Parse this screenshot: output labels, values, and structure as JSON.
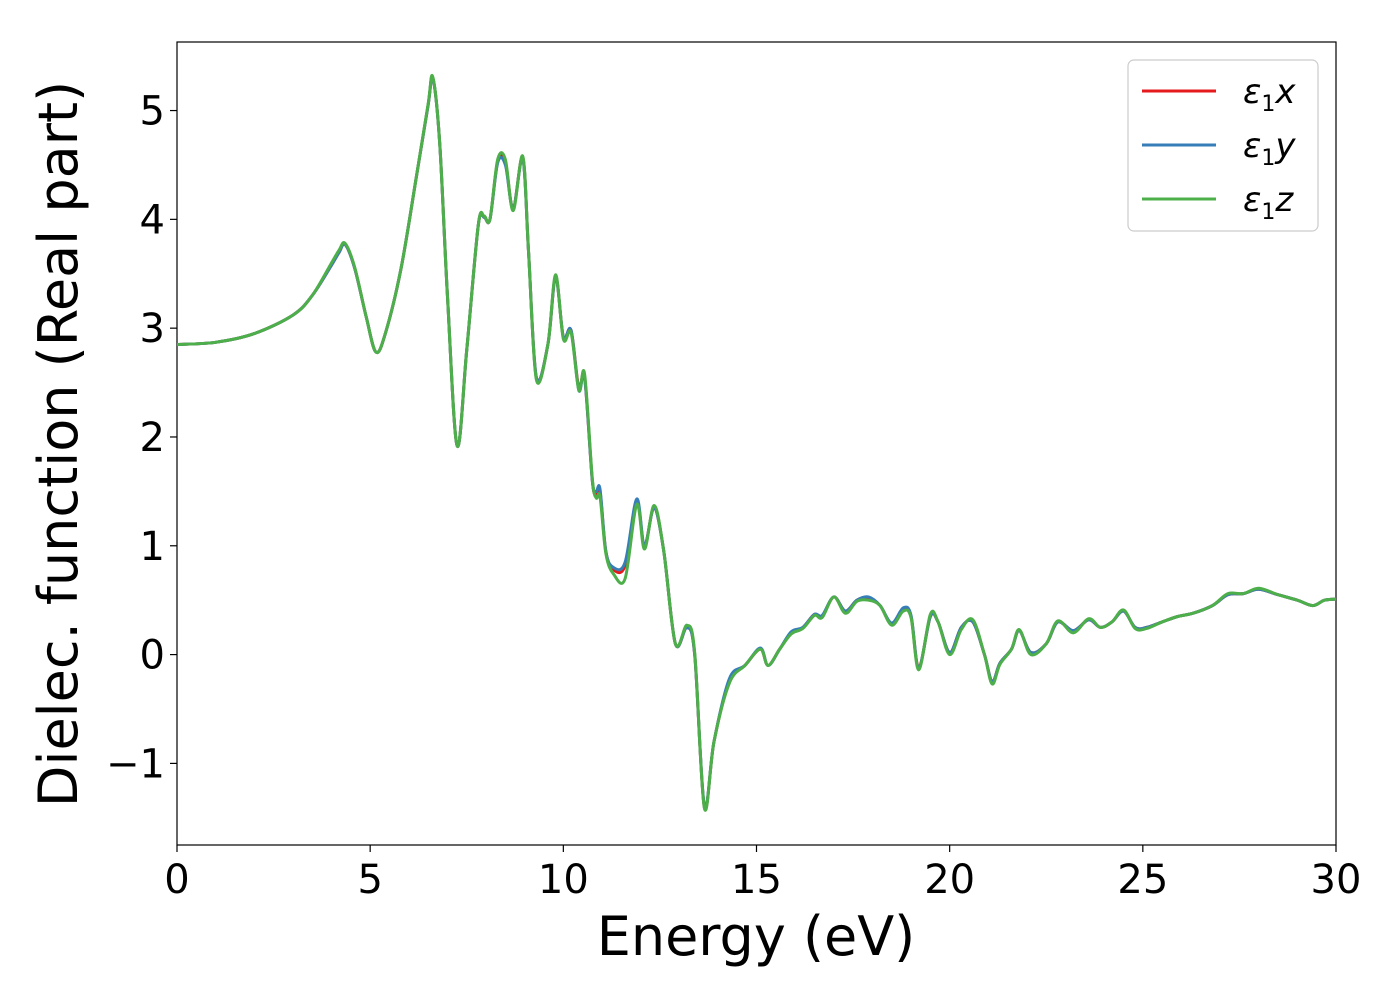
{
  "chart_data": {
    "type": "line",
    "xlabel": "Energy (eV)",
    "ylabel": "Dielec. function (Real part)",
    "xlim": [
      0,
      30
    ],
    "ylim": [
      -1.75,
      5.63
    ],
    "xticks": [
      0,
      5,
      10,
      15,
      20,
      25,
      30
    ],
    "xtick_labels": [
      "0",
      "5",
      "10",
      "15",
      "20",
      "25",
      "30"
    ],
    "yticks": [
      -1,
      0,
      1,
      2,
      3,
      4,
      5
    ],
    "ytick_labels": [
      "−1",
      "0",
      "1",
      "2",
      "3",
      "4",
      "5"
    ],
    "grid": false,
    "legend_position": "top-right",
    "series": [
      {
        "name": "ε₁x",
        "legend": {
          "main": "ε",
          "sub": "1",
          "var": "x"
        },
        "color": "#e41a1c",
        "x": [
          0,
          1,
          2,
          3,
          3.5,
          4.0,
          4.2,
          4.35,
          4.6,
          4.9,
          5.15,
          5.4,
          5.8,
          6.2,
          6.5,
          6.62,
          6.8,
          7.0,
          7.25,
          7.5,
          7.8,
          7.95,
          8.1,
          8.3,
          8.5,
          8.7,
          8.95,
          9.1,
          9.3,
          9.6,
          9.8,
          10.0,
          10.2,
          10.4,
          10.55,
          10.75,
          10.85,
          10.95,
          11.1,
          11.3,
          11.6,
          11.9,
          12.1,
          12.35,
          12.6,
          12.9,
          13.2,
          13.4,
          13.65,
          13.9,
          14.3,
          14.7,
          15.1,
          15.3,
          15.6,
          15.9,
          16.2,
          16.5,
          16.7,
          17.0,
          17.3,
          17.6,
          17.9,
          18.2,
          18.5,
          18.8,
          19.0,
          19.2,
          19.5,
          19.7,
          20.0,
          20.3,
          20.6,
          20.9,
          21.1,
          21.3,
          21.6,
          21.8,
          22.1,
          22.5,
          22.8,
          23.2,
          23.6,
          23.9,
          24.2,
          24.5,
          24.8,
          25.1,
          25.5,
          25.9,
          26.3,
          26.8,
          27.2,
          27.6,
          28.0,
          28.5,
          29.0,
          29.4,
          29.7,
          30.0
        ],
        "y": [
          2.85,
          2.87,
          2.95,
          3.12,
          3.3,
          3.58,
          3.7,
          3.77,
          3.55,
          3.1,
          2.78,
          2.96,
          3.55,
          4.4,
          5.05,
          5.3,
          4.7,
          3.3,
          1.92,
          2.8,
          3.95,
          4.02,
          4.0,
          4.53,
          4.52,
          4.1,
          4.57,
          3.7,
          2.55,
          2.85,
          3.47,
          2.92,
          2.98,
          2.45,
          2.55,
          1.6,
          1.48,
          1.5,
          0.95,
          0.78,
          0.82,
          1.4,
          1.0,
          1.35,
          0.95,
          0.1,
          0.25,
          0.0,
          -1.4,
          -0.8,
          -0.24,
          -0.1,
          0.05,
          -0.1,
          0.05,
          0.2,
          0.25,
          0.37,
          0.35,
          0.53,
          0.4,
          0.5,
          0.52,
          0.45,
          0.28,
          0.42,
          0.35,
          -0.12,
          0.35,
          0.3,
          0.02,
          0.25,
          0.3,
          0.0,
          -0.25,
          -0.08,
          0.05,
          0.22,
          0.02,
          0.1,
          0.3,
          0.22,
          0.32,
          0.25,
          0.3,
          0.4,
          0.25,
          0.25,
          0.3,
          0.35,
          0.38,
          0.45,
          0.55,
          0.56,
          0.6,
          0.55,
          0.5,
          0.45,
          0.5,
          0.51
        ]
      },
      {
        "name": "ε₁y",
        "legend": {
          "main": "ε",
          "sub": "1",
          "var": "y"
        },
        "color": "#377eb8",
        "x": [
          0,
          1,
          2,
          3,
          3.5,
          4.0,
          4.2,
          4.35,
          4.6,
          4.9,
          5.15,
          5.4,
          5.8,
          6.2,
          6.5,
          6.62,
          6.8,
          7.0,
          7.25,
          7.5,
          7.8,
          7.95,
          8.1,
          8.3,
          8.5,
          8.7,
          8.95,
          9.1,
          9.3,
          9.6,
          9.8,
          10.0,
          10.2,
          10.4,
          10.55,
          10.75,
          10.85,
          10.95,
          11.1,
          11.3,
          11.6,
          11.9,
          12.1,
          12.35,
          12.6,
          12.9,
          13.2,
          13.4,
          13.65,
          13.9,
          14.3,
          14.7,
          15.1,
          15.3,
          15.6,
          15.9,
          16.2,
          16.5,
          16.7,
          17.0,
          17.3,
          17.6,
          17.9,
          18.2,
          18.5,
          18.8,
          19.0,
          19.2,
          19.5,
          19.7,
          20.0,
          20.3,
          20.6,
          20.9,
          21.1,
          21.3,
          21.6,
          21.8,
          22.1,
          22.5,
          22.8,
          23.2,
          23.6,
          23.9,
          24.2,
          24.5,
          24.8,
          25.1,
          25.5,
          25.9,
          26.3,
          26.8,
          27.2,
          27.6,
          28.0,
          28.5,
          29.0,
          29.4,
          29.7,
          30.0
        ],
        "y": [
          2.85,
          2.87,
          2.95,
          3.12,
          3.3,
          3.58,
          3.7,
          3.77,
          3.55,
          3.1,
          2.78,
          2.96,
          3.55,
          4.4,
          5.05,
          5.3,
          4.7,
          3.3,
          1.92,
          2.8,
          3.95,
          4.02,
          4.0,
          4.52,
          4.5,
          4.1,
          4.56,
          3.7,
          2.55,
          2.85,
          3.47,
          2.92,
          2.98,
          2.43,
          2.55,
          1.6,
          1.5,
          1.52,
          0.95,
          0.8,
          0.85,
          1.43,
          1.0,
          1.35,
          0.95,
          0.1,
          0.25,
          0.0,
          -1.39,
          -0.8,
          -0.22,
          -0.1,
          0.06,
          -0.1,
          0.05,
          0.21,
          0.25,
          0.37,
          0.36,
          0.53,
          0.4,
          0.5,
          0.53,
          0.45,
          0.29,
          0.43,
          0.36,
          -0.12,
          0.35,
          0.3,
          0.02,
          0.25,
          0.3,
          0.0,
          -0.25,
          -0.08,
          0.05,
          0.22,
          0.02,
          0.1,
          0.3,
          0.22,
          0.32,
          0.25,
          0.3,
          0.4,
          0.25,
          0.25,
          0.3,
          0.35,
          0.38,
          0.45,
          0.55,
          0.56,
          0.6,
          0.55,
          0.5,
          0.45,
          0.5,
          0.51
        ]
      },
      {
        "name": "ε₁z",
        "legend": {
          "main": "ε",
          "sub": "1",
          "var": "z"
        },
        "color": "#4daf4a",
        "x": [
          0,
          1,
          2,
          3,
          3.5,
          4.0,
          4.2,
          4.35,
          4.6,
          4.9,
          5.15,
          5.4,
          5.8,
          6.2,
          6.5,
          6.62,
          6.8,
          7.0,
          7.25,
          7.5,
          7.8,
          7.95,
          8.1,
          8.3,
          8.5,
          8.7,
          8.95,
          9.1,
          9.3,
          9.6,
          9.8,
          10.0,
          10.2,
          10.4,
          10.55,
          10.75,
          10.85,
          10.95,
          11.1,
          11.3,
          11.6,
          11.9,
          12.1,
          12.35,
          12.6,
          12.9,
          13.2,
          13.4,
          13.65,
          13.9,
          14.3,
          14.7,
          15.1,
          15.3,
          15.6,
          15.9,
          16.2,
          16.5,
          16.7,
          17.0,
          17.3,
          17.6,
          17.9,
          18.2,
          18.5,
          18.8,
          19.0,
          19.2,
          19.5,
          19.7,
          20.0,
          20.3,
          20.6,
          20.9,
          21.1,
          21.3,
          21.6,
          21.8,
          22.1,
          22.5,
          22.8,
          23.2,
          23.6,
          23.9,
          24.2,
          24.5,
          24.8,
          25.1,
          25.5,
          25.9,
          26.3,
          26.8,
          27.2,
          27.6,
          28.0,
          28.5,
          29.0,
          29.4,
          29.7,
          30.0
        ],
        "y": [
          2.85,
          2.87,
          2.95,
          3.12,
          3.3,
          3.6,
          3.72,
          3.78,
          3.56,
          3.1,
          2.78,
          2.96,
          3.55,
          4.4,
          5.06,
          5.31,
          4.7,
          3.3,
          1.92,
          2.8,
          3.95,
          4.03,
          4.0,
          4.55,
          4.55,
          4.08,
          4.58,
          3.7,
          2.53,
          2.85,
          3.49,
          2.9,
          2.96,
          2.43,
          2.58,
          1.62,
          1.44,
          1.45,
          0.93,
          0.74,
          0.7,
          1.38,
          0.97,
          1.37,
          0.95,
          0.1,
          0.27,
          0.02,
          -1.41,
          -0.8,
          -0.26,
          -0.1,
          0.05,
          -0.1,
          0.05,
          0.19,
          0.24,
          0.36,
          0.34,
          0.53,
          0.38,
          0.49,
          0.5,
          0.45,
          0.27,
          0.4,
          0.34,
          -0.14,
          0.37,
          0.3,
          0.0,
          0.23,
          0.32,
          0.0,
          -0.27,
          -0.09,
          0.05,
          0.23,
          0.0,
          0.1,
          0.31,
          0.2,
          0.33,
          0.25,
          0.3,
          0.41,
          0.24,
          0.24,
          0.3,
          0.35,
          0.38,
          0.45,
          0.56,
          0.56,
          0.61,
          0.55,
          0.5,
          0.45,
          0.5,
          0.51
        ]
      }
    ]
  }
}
